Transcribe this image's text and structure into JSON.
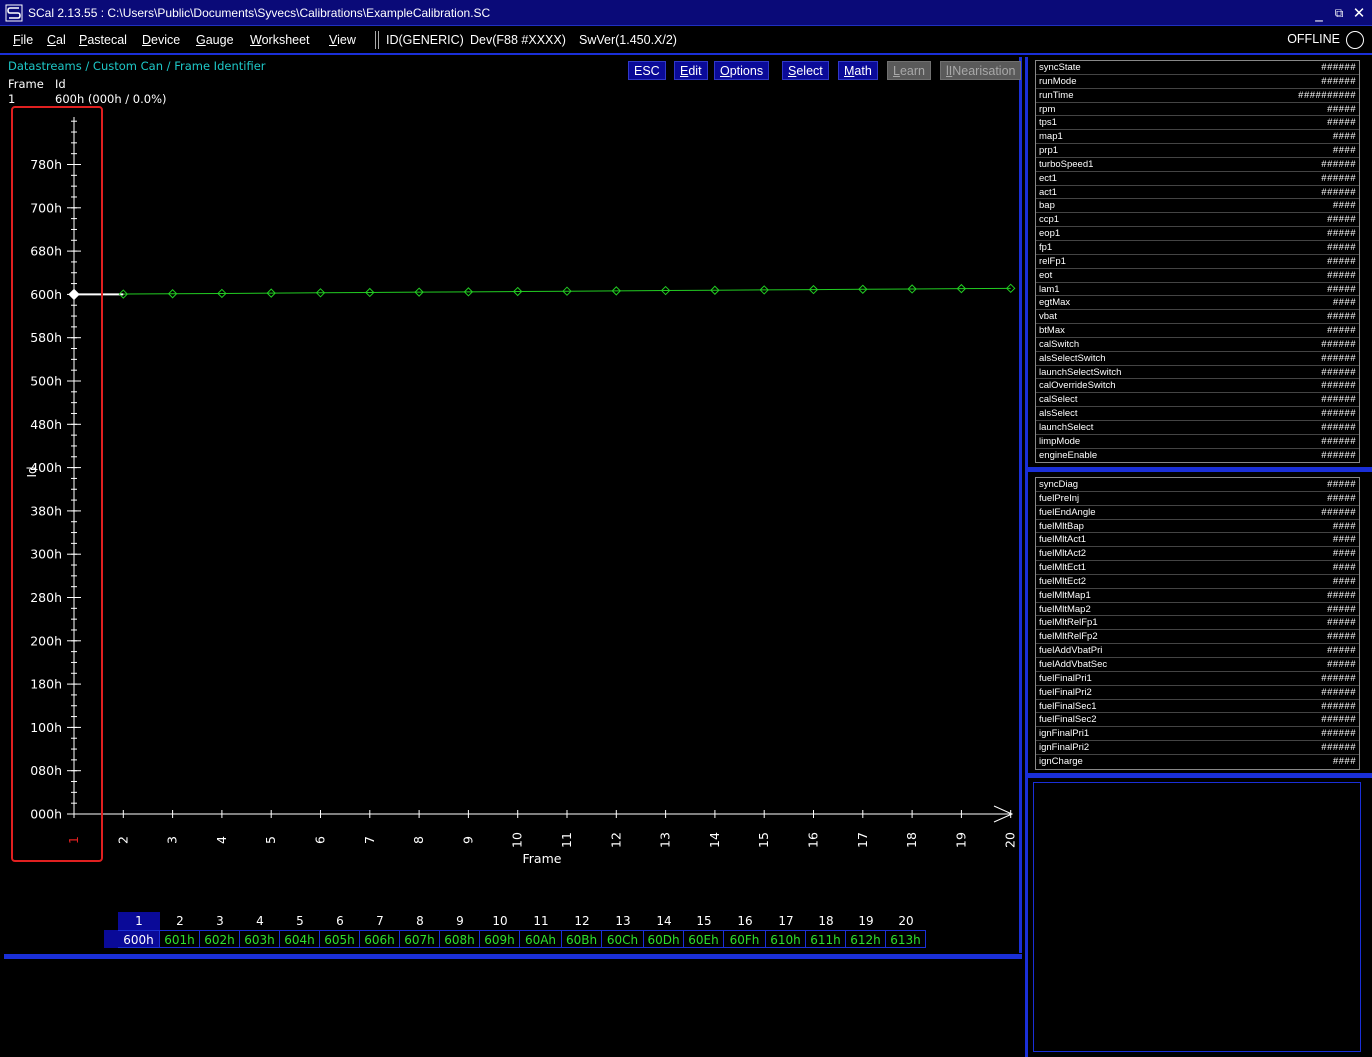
{
  "window": {
    "title": "SCal 2.13.55  :  C:\\Users\\Public\\Documents\\Syvecs\\Calibrations\\ExampleCalibration.SC",
    "minimize": "_",
    "maximize": "⧉",
    "close": "✕"
  },
  "menu": {
    "items": [
      {
        "u": "F",
        "rest": "ile"
      },
      {
        "u": "C",
        "rest": "al"
      },
      {
        "u": "P",
        "rest": "astecal"
      },
      {
        "u": "D",
        "rest": "evice"
      },
      {
        "u": "G",
        "rest": "auge"
      },
      {
        "u": "W",
        "rest": "orksheet"
      },
      {
        "u": "V",
        "rest": "iew"
      }
    ],
    "id_info": "ID(GENERIC)",
    "dev_info": "Dev(F88 #XXXX)",
    "sw_info": "SwVer(1.450.X/2)",
    "status": "OFFLINE"
  },
  "main": {
    "breadcrumb": "Datastreams / Custom Can / Frame Identifier",
    "header_frame": "Frame",
    "header_id": "Id",
    "row_frame": "1",
    "row_value": "600h (000h / 0.0%)",
    "toolbar": {
      "esc": "ESC",
      "edit_u": "E",
      "edit_rest": "dit",
      "options_u": "O",
      "options_rest": "ptions",
      "select_u": "S",
      "select_rest": "elect",
      "math_u": "M",
      "math_rest": "ath",
      "learn_u": "L",
      "learn_rest": "earn",
      "linear_u": "lI",
      "linear_rest": "Nearisation"
    }
  },
  "chart_data": {
    "type": "line",
    "xlabel": "Frame",
    "ylabel": "Id",
    "x": [
      1,
      2,
      3,
      4,
      5,
      6,
      7,
      8,
      9,
      10,
      11,
      12,
      13,
      14,
      15,
      16,
      17,
      18,
      19,
      20
    ],
    "y_tick_labels": [
      "000h",
      "080h",
      "100h",
      "180h",
      "200h",
      "280h",
      "300h",
      "380h",
      "400h",
      "480h",
      "500h",
      "580h",
      "600h",
      "680h",
      "700h",
      "780h"
    ],
    "series": [
      {
        "values_hex": [
          "600h",
          "601h",
          "602h",
          "603h",
          "604h",
          "605h",
          "606h",
          "607h",
          "608h",
          "609h",
          "60Ah",
          "60Bh",
          "60Ch",
          "60Dh",
          "60Eh",
          "60Fh",
          "610h",
          "611h",
          "612h",
          "613h"
        ],
        "values": [
          1536,
          1537,
          1538,
          1539,
          1540,
          1541,
          1542,
          1543,
          1544,
          1545,
          1546,
          1547,
          1548,
          1549,
          1550,
          1551,
          1552,
          1553,
          1554,
          1555
        ],
        "color": "#22cc22"
      }
    ],
    "selected_x": 1,
    "selected_color": "#ffffff",
    "axis_color": "#ffffff",
    "selected_tick_color": "#e02020"
  },
  "frame_table": {
    "frames": [
      "1",
      "2",
      "3",
      "4",
      "5",
      "6",
      "7",
      "8",
      "9",
      "10",
      "11",
      "12",
      "13",
      "14",
      "15",
      "16",
      "17",
      "18",
      "19",
      "20"
    ],
    "ids": [
      "600h",
      "601h",
      "602h",
      "603h",
      "604h",
      "605h",
      "606h",
      "607h",
      "608h",
      "609h",
      "60Ah",
      "60Bh",
      "60Ch",
      "60Dh",
      "60Eh",
      "60Fh",
      "610h",
      "611h",
      "612h",
      "613h"
    ]
  },
  "streams_top": [
    {
      "name": "syncState",
      "val": "######"
    },
    {
      "name": "runMode",
      "val": "######"
    },
    {
      "name": "runTime",
      "val": "##########"
    },
    {
      "name": "rpm",
      "val": "#####"
    },
    {
      "name": "tps1",
      "val": "#####"
    },
    {
      "name": "map1",
      "val": "####"
    },
    {
      "name": "prp1",
      "val": "####"
    },
    {
      "name": "turboSpeed1",
      "val": "######"
    },
    {
      "name": "ect1",
      "val": "######"
    },
    {
      "name": "act1",
      "val": "######"
    },
    {
      "name": "bap",
      "val": "####"
    },
    {
      "name": "ccp1",
      "val": "#####"
    },
    {
      "name": "eop1",
      "val": "#####"
    },
    {
      "name": "fp1",
      "val": "#####"
    },
    {
      "name": "relFp1",
      "val": "#####"
    },
    {
      "name": "eot",
      "val": "#####"
    },
    {
      "name": "lam1",
      "val": "#####"
    },
    {
      "name": "egtMax",
      "val": "####"
    },
    {
      "name": "vbat",
      "val": "#####"
    },
    {
      "name": "btMax",
      "val": "#####"
    },
    {
      "name": "calSwitch",
      "val": "######"
    },
    {
      "name": "alsSelectSwitch",
      "val": "######"
    },
    {
      "name": "launchSelectSwitch",
      "val": "######"
    },
    {
      "name": "calOverrideSwitch",
      "val": "######"
    },
    {
      "name": "calSelect",
      "val": "######"
    },
    {
      "name": "alsSelect",
      "val": "######"
    },
    {
      "name": "launchSelect",
      "val": "######"
    },
    {
      "name": "limpMode",
      "val": "######"
    },
    {
      "name": "engineEnable",
      "val": "######"
    }
  ],
  "streams_bottom": [
    {
      "name": "syncDiag",
      "val": "#####"
    },
    {
      "name": "fuelPreInj",
      "val": "#####"
    },
    {
      "name": "fuelEndAngle",
      "val": "######"
    },
    {
      "name": "fuelMltBap",
      "val": "####"
    },
    {
      "name": "fuelMltAct1",
      "val": "####"
    },
    {
      "name": "fuelMltAct2",
      "val": "####"
    },
    {
      "name": "fuelMltEct1",
      "val": "####"
    },
    {
      "name": "fuelMltEct2",
      "val": "####"
    },
    {
      "name": "fuelMltMap1",
      "val": "#####"
    },
    {
      "name": "fuelMltMap2",
      "val": "#####"
    },
    {
      "name": "fuelMltRelFp1",
      "val": "#####"
    },
    {
      "name": "fuelMltRelFp2",
      "val": "#####"
    },
    {
      "name": "fuelAddVbatPri",
      "val": "#####"
    },
    {
      "name": "fuelAddVbatSec",
      "val": "#####"
    },
    {
      "name": "fuelFinalPri1",
      "val": "######"
    },
    {
      "name": "fuelFinalPri2",
      "val": "######"
    },
    {
      "name": "fuelFinalSec1",
      "val": "######"
    },
    {
      "name": "fuelFinalSec2",
      "val": "######"
    },
    {
      "name": "ignFinalPri1",
      "val": "######"
    },
    {
      "name": "ignFinalPri2",
      "val": "######"
    },
    {
      "name": "ignCharge",
      "val": "####"
    }
  ]
}
